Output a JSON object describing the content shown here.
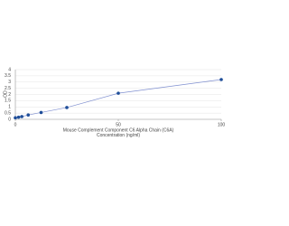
{
  "chart_data": {
    "type": "line",
    "x_label": [
      "Mouse Complement Component C6 Alpha Chain (C6A)",
      "Concentration (ng/ml)"
    ],
    "y_label": "OD",
    "x": [
      0,
      1.56,
      3.13,
      6.25,
      12.5,
      25,
      50,
      100
    ],
    "series": [
      {
        "values": [
          0.12,
          0.17,
          0.22,
          0.35,
          0.55,
          0.95,
          2.1,
          3.2
        ],
        "color": "#1f4e99",
        "line_color": "#8090d0"
      }
    ],
    "xlim": [
      0,
      100
    ],
    "xticks": [
      0,
      50,
      100
    ],
    "ylim": [
      0,
      4
    ],
    "yticks": [
      0,
      0.5,
      1,
      1.5,
      2,
      2.5,
      3,
      3.5,
      4
    ],
    "grid": true
  }
}
